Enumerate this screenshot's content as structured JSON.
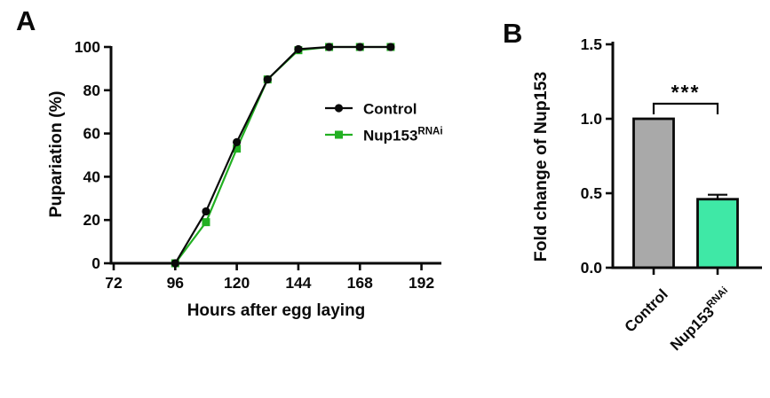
{
  "figure": {
    "panel_a": "A",
    "panel_b": "B"
  },
  "colors": {
    "axis_black": "#0a0a0a",
    "control_black": "#0a0a0a",
    "rnai_green": "#22b022",
    "bar_gray": "#a9a9a9",
    "bar_mint": "#3fe8a6",
    "background": "#ffffff"
  },
  "chart_data": [
    {
      "type": "line",
      "panel": "A",
      "title": "",
      "xlabel": "Hours after egg laying",
      "ylabel": "Pupariation (%)",
      "xlim": [
        72,
        199
      ],
      "ylim": [
        0,
        100
      ],
      "xticks": [
        72,
        96,
        120,
        144,
        168,
        192
      ],
      "yticks": [
        0,
        20,
        40,
        60,
        80,
        100
      ],
      "grid": false,
      "legend_position": "right-middle",
      "x": [
        96,
        108,
        120,
        132,
        144,
        156,
        168,
        180
      ],
      "series": [
        {
          "name": "Control",
          "sup": "",
          "color": "#0a0a0a",
          "marker": "circle",
          "values": [
            0,
            24,
            56,
            85,
            99,
            100,
            100,
            100
          ]
        },
        {
          "name": "Nup153",
          "sup": "RNAi",
          "color": "#22b022",
          "marker": "square",
          "values": [
            0,
            19,
            53,
            85,
            98.5,
            100,
            100,
            100
          ]
        }
      ]
    },
    {
      "type": "bar",
      "panel": "B",
      "title": "",
      "xlabel": "",
      "ylabel": "Fold change of Nup153",
      "ylim": [
        0,
        1.5
      ],
      "yticks": [
        0,
        0.5,
        1,
        1.5
      ],
      "ytick_labels": [
        "0.0",
        "0.5",
        "1.0",
        "1.5"
      ],
      "grid": false,
      "categories": [
        {
          "label": "Control",
          "sup": ""
        },
        {
          "label": "Nup153",
          "sup": "RNAi"
        }
      ],
      "values": [
        1.0,
        0.46
      ],
      "errors": [
        0,
        0.03
      ],
      "bar_colors": [
        "#a9a9a9",
        "#3fe8a6"
      ],
      "bar_edge_color": "#0a0a0a",
      "significance": {
        "label": "***",
        "pair": [
          0,
          1
        ]
      }
    }
  ]
}
